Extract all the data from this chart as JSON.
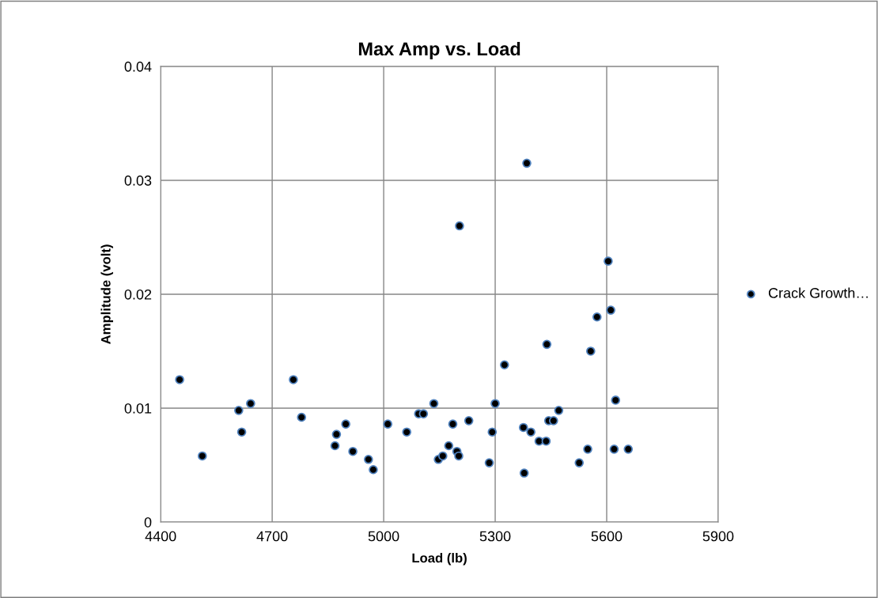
{
  "chart_data": {
    "type": "scatter",
    "title": "Max Amp vs. Load",
    "xlabel": "Load (lb)",
    "ylabel": "Amplitude (volt)",
    "xlim": [
      4400,
      5900
    ],
    "xticks": [
      4400,
      4700,
      5000,
      5300,
      5600,
      5900
    ],
    "ylim": [
      0,
      0.04
    ],
    "yticks": [
      0,
      0.01,
      0.02,
      0.03,
      0.04
    ],
    "grid": true,
    "legend": "right",
    "marker": "circle",
    "series": [
      {
        "name": "Crack Growth…",
        "color": "#000000",
        "x": [
          4451,
          4512,
          4610,
          4618,
          4642,
          4757,
          4779,
          4873,
          4869,
          4898,
          4917,
          4959,
          4972,
          5011,
          5062,
          5094,
          5107,
          5135,
          5147,
          5159,
          5175,
          5197,
          5202,
          5186,
          5204,
          5229,
          5284,
          5292,
          5300,
          5325,
          5385,
          5376,
          5378,
          5396,
          5418,
          5437,
          5439,
          5444,
          5457,
          5471,
          5526,
          5549,
          5557,
          5574,
          5604,
          5611,
          5624,
          5620,
          5658
        ],
        "values": [
          0.0125,
          0.0058,
          0.0098,
          0.0079,
          0.0104,
          0.0125,
          0.0092,
          0.0077,
          0.0067,
          0.0086,
          0.0062,
          0.0055,
          0.0046,
          0.0086,
          0.0079,
          0.0095,
          0.0095,
          0.0104,
          0.0055,
          0.0058,
          0.0067,
          0.0062,
          0.0058,
          0.0086,
          0.026,
          0.0089,
          0.0052,
          0.0079,
          0.0104,
          0.0138,
          0.0315,
          0.0083,
          0.0043,
          0.0079,
          0.0071,
          0.0071,
          0.0156,
          0.0089,
          0.0089,
          0.0098,
          0.0052,
          0.0064,
          0.015,
          0.018,
          0.0229,
          0.0186,
          0.0107,
          0.0064,
          0.0064
        ]
      }
    ]
  }
}
